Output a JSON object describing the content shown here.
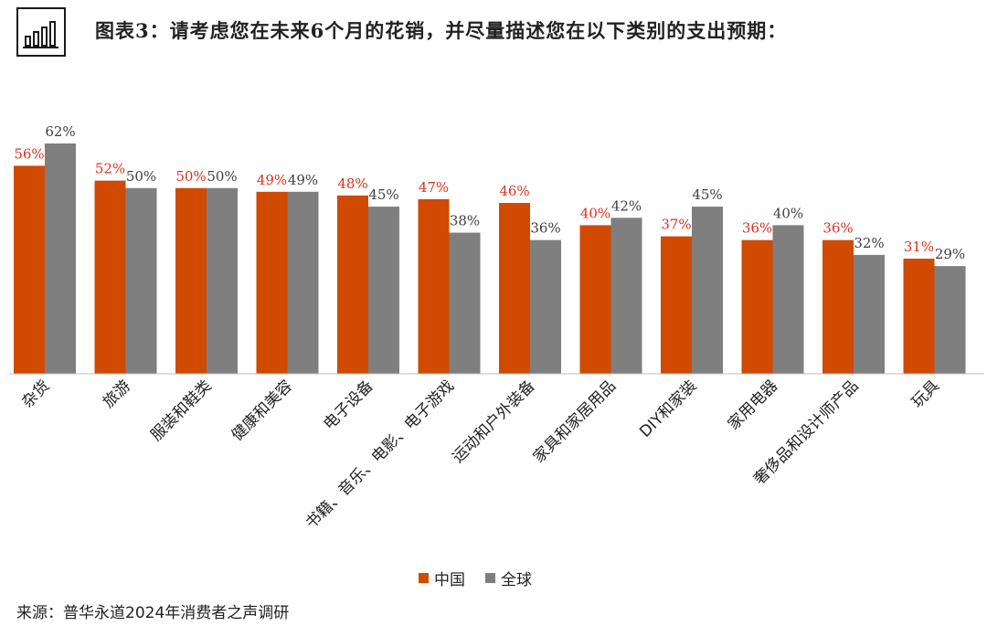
{
  "header": {
    "title": "图表3：请考虑您在未来6个月的花销，并尽量描述您在以下类别的支出预期：",
    "logo_icon": "bar-chart-icon"
  },
  "chart_data": {
    "type": "bar",
    "categories": [
      "杂货",
      "旅游",
      "服装和鞋类",
      "健康和美容",
      "电子设备",
      "书籍、音乐、电影、电子游戏",
      "运动和户外装备",
      "家具和家居用品",
      "DIY和家装",
      "家用电器",
      "奢侈品和设计师产品",
      "玩具"
    ],
    "series": [
      {
        "name": "中国",
        "color": "#d04a02",
        "label_color": "#e0301e",
        "values": [
          56,
          52,
          50,
          49,
          48,
          47,
          46,
          40,
          37,
          36,
          36,
          31
        ]
      },
      {
        "name": "全球",
        "color": "#7f7f7f",
        "label_color": "#404040",
        "values": [
          62,
          50,
          50,
          49,
          45,
          38,
          36,
          42,
          45,
          40,
          32,
          29
        ]
      }
    ],
    "value_suffix": "%",
    "ylim": [
      0,
      62
    ],
    "grid": false,
    "legend_position": "bottom"
  },
  "legend": {
    "items": [
      {
        "label": "中国",
        "color": "#d04a02"
      },
      {
        "label": "全球",
        "color": "#7f7f7f"
      }
    ]
  },
  "footer": {
    "source": "来源：普华永道2024年消费者之声调研"
  }
}
